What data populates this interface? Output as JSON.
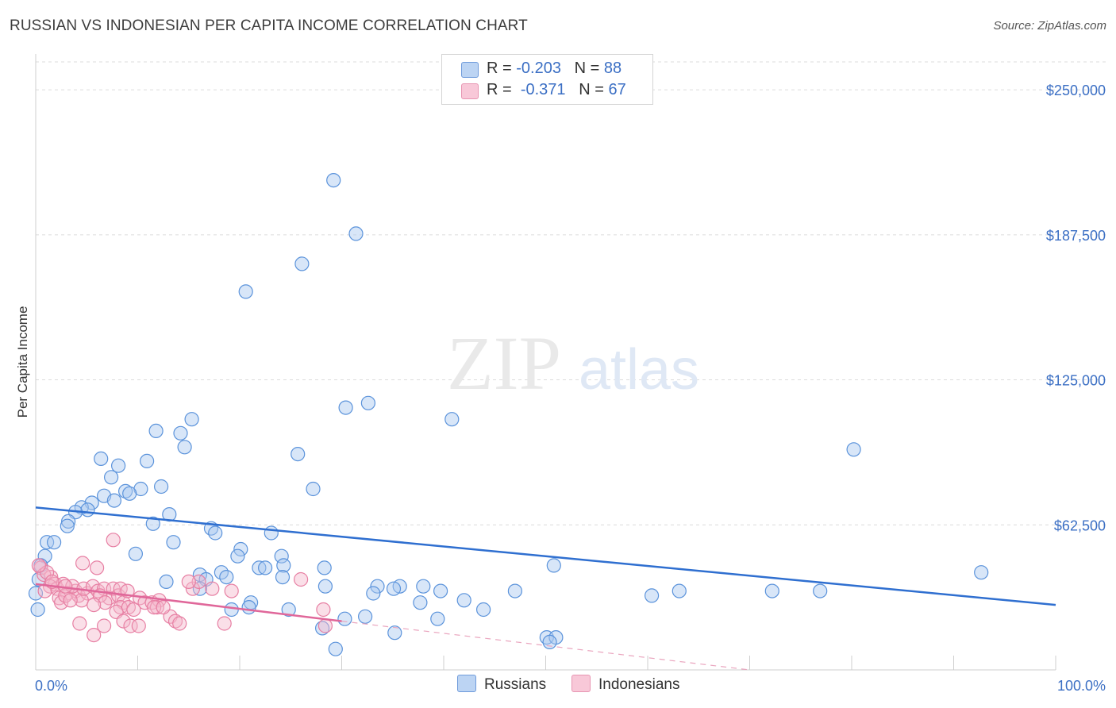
{
  "chart_data": {
    "type": "scatter",
    "title": "RUSSIAN VS INDONESIAN PER CAPITA INCOME CORRELATION CHART",
    "source": "Source: ZipAtlas.com",
    "ylabel": "Per Capita Income",
    "xlim": [
      0,
      100
    ],
    "ylim": [
      0,
      262000
    ],
    "x_tick_labels": [
      "0.0%",
      "100.0%"
    ],
    "y_ticks": [
      62500,
      125000,
      187500,
      250000
    ],
    "y_tick_labels": [
      "$62,500",
      "$125,000",
      "$187,500",
      "$250,000"
    ],
    "watermark": {
      "zip": "ZIP",
      "atlas": "atlas"
    },
    "legend": [
      {
        "r_label": "R = ",
        "r_value": "-0.203",
        "n_label": "N = ",
        "n_value": "88"
      },
      {
        "r_label": "R = ",
        "r_value": "-0.371",
        "n_label": "N = ",
        "n_value": "67"
      }
    ],
    "series": [
      {
        "name": "Russians",
        "color": "#5b93db",
        "fill": "#a8c8f0",
        "trend": {
          "x0": 0,
          "y0": 70000,
          "x1": 100,
          "y1": 28000
        },
        "points": [
          [
            29.2,
            211000
          ],
          [
            31.4,
            188000
          ],
          [
            26.1,
            175000
          ],
          [
            20.6,
            163000
          ],
          [
            30.4,
            113000
          ],
          [
            32.6,
            115000
          ],
          [
            40.8,
            108000
          ],
          [
            15.3,
            108000
          ],
          [
            11.8,
            103000
          ],
          [
            14.2,
            102000
          ],
          [
            14.6,
            96000
          ],
          [
            25.7,
            93000
          ],
          [
            6.4,
            91000
          ],
          [
            10.9,
            90000
          ],
          [
            8.1,
            88000
          ],
          [
            27.2,
            78000
          ],
          [
            7.4,
            83000
          ],
          [
            12.3,
            79000
          ],
          [
            10.3,
            78000
          ],
          [
            8.8,
            77000
          ],
          [
            9.2,
            76000
          ],
          [
            6.7,
            75000
          ],
          [
            7.7,
            73000
          ],
          [
            5.5,
            72000
          ],
          [
            4.5,
            70000
          ],
          [
            5.1,
            69000
          ],
          [
            3.9,
            68000
          ],
          [
            13.1,
            67000
          ],
          [
            3.2,
            64000
          ],
          [
            11.5,
            63000
          ],
          [
            3.1,
            62000
          ],
          [
            17.2,
            61000
          ],
          [
            17.6,
            59000
          ],
          [
            23.1,
            59000
          ],
          [
            1.1,
            55000
          ],
          [
            13.5,
            55000
          ],
          [
            1.8,
            55000
          ],
          [
            20.1,
            52000
          ],
          [
            9.8,
            50000
          ],
          [
            19.8,
            49000
          ],
          [
            0.9,
            49000
          ],
          [
            24.1,
            49000
          ],
          [
            0.5,
            45000
          ],
          [
            21.9,
            44000
          ],
          [
            22.5,
            44000
          ],
          [
            24.3,
            45000
          ],
          [
            28.3,
            44000
          ],
          [
            18.2,
            42000
          ],
          [
            16.1,
            41000
          ],
          [
            18.7,
            40000
          ],
          [
            24.2,
            40000
          ],
          [
            16.7,
            39000
          ],
          [
            12.8,
            38000
          ],
          [
            0.3,
            39000
          ],
          [
            33.5,
            36000
          ],
          [
            35.7,
            36000
          ],
          [
            38.0,
            36000
          ],
          [
            28.4,
            36000
          ],
          [
            16.1,
            35000
          ],
          [
            35.1,
            35000
          ],
          [
            39.7,
            34000
          ],
          [
            33.1,
            33000
          ],
          [
            0.0,
            33000
          ],
          [
            47.0,
            34000
          ],
          [
            63.1,
            34000
          ],
          [
            72.2,
            34000
          ],
          [
            60.4,
            32000
          ],
          [
            42.0,
            30000
          ],
          [
            37.7,
            29000
          ],
          [
            21.1,
            29000
          ],
          [
            20.9,
            27000
          ],
          [
            19.2,
            26000
          ],
          [
            24.8,
            26000
          ],
          [
            43.9,
            26000
          ],
          [
            32.3,
            23000
          ],
          [
            30.3,
            22000
          ],
          [
            39.4,
            22000
          ],
          [
            28.1,
            18000
          ],
          [
            35.2,
            16000
          ],
          [
            29.4,
            9000
          ],
          [
            50.1,
            14000
          ],
          [
            51.0,
            14000
          ],
          [
            50.4,
            12000
          ],
          [
            50.8,
            45000
          ],
          [
            80.2,
            95000
          ],
          [
            92.7,
            42000
          ],
          [
            76.9,
            34000
          ],
          [
            0.2,
            26000
          ]
        ]
      },
      {
        "name": "Indonesians",
        "color": "#e77fa3",
        "fill": "#f5b8cc",
        "trend": {
          "x0": 0,
          "y0": 37000,
          "x1": 30,
          "y1": 21000
        },
        "trend_dash": {
          "x0": 30,
          "y0": 21000,
          "x1": 70,
          "y1": 0
        },
        "points": [
          [
            0.5,
            44000
          ],
          [
            1.5,
            40000
          ],
          [
            0.8,
            41000
          ],
          [
            1.9,
            37000
          ],
          [
            1.4,
            36000
          ],
          [
            2.1,
            35000
          ],
          [
            0.9,
            34000
          ],
          [
            2.7,
            37000
          ],
          [
            3.1,
            33000
          ],
          [
            3.9,
            34000
          ],
          [
            2.3,
            31000
          ],
          [
            4.2,
            32000
          ],
          [
            5.1,
            33000
          ],
          [
            4.5,
            30000
          ],
          [
            2.5,
            29000
          ],
          [
            2.9,
            32000
          ],
          [
            3.6,
            36000
          ],
          [
            4.7,
            35000
          ],
          [
            5.6,
            36000
          ],
          [
            6.1,
            34000
          ],
          [
            6.7,
            35000
          ],
          [
            7.2,
            31000
          ],
          [
            7.6,
            35000
          ],
          [
            6.3,
            32000
          ],
          [
            6.8,
            29000
          ],
          [
            5.7,
            28000
          ],
          [
            8.1,
            32000
          ],
          [
            8.6,
            29000
          ],
          [
            8.3,
            27000
          ],
          [
            7.9,
            25000
          ],
          [
            9.1,
            27000
          ],
          [
            9.6,
            26000
          ],
          [
            10.2,
            31000
          ],
          [
            10.7,
            29000
          ],
          [
            11.4,
            29000
          ],
          [
            12.1,
            30000
          ],
          [
            11.9,
            27000
          ],
          [
            13.2,
            23000
          ],
          [
            13.7,
            21000
          ],
          [
            14.1,
            20000
          ],
          [
            15.4,
            35000
          ],
          [
            16.0,
            38000
          ],
          [
            17.3,
            35000
          ],
          [
            18.5,
            20000
          ],
          [
            19.2,
            34000
          ],
          [
            6.0,
            44000
          ],
          [
            4.6,
            46000
          ],
          [
            7.6,
            56000
          ],
          [
            2.9,
            36000
          ],
          [
            1.1,
            42000
          ],
          [
            3.4,
            30000
          ],
          [
            8.6,
            21000
          ],
          [
            9.3,
            19000
          ],
          [
            10.1,
            19000
          ],
          [
            6.7,
            19000
          ],
          [
            4.3,
            20000
          ],
          [
            5.7,
            15000
          ],
          [
            8.3,
            35000
          ],
          [
            9.0,
            34000
          ],
          [
            11.6,
            27000
          ],
          [
            12.5,
            27000
          ],
          [
            0.3,
            45000
          ],
          [
            1.6,
            38000
          ],
          [
            28.2,
            26000
          ],
          [
            28.4,
            19000
          ],
          [
            26.0,
            39000
          ],
          [
            15.0,
            38000
          ]
        ]
      }
    ]
  }
}
